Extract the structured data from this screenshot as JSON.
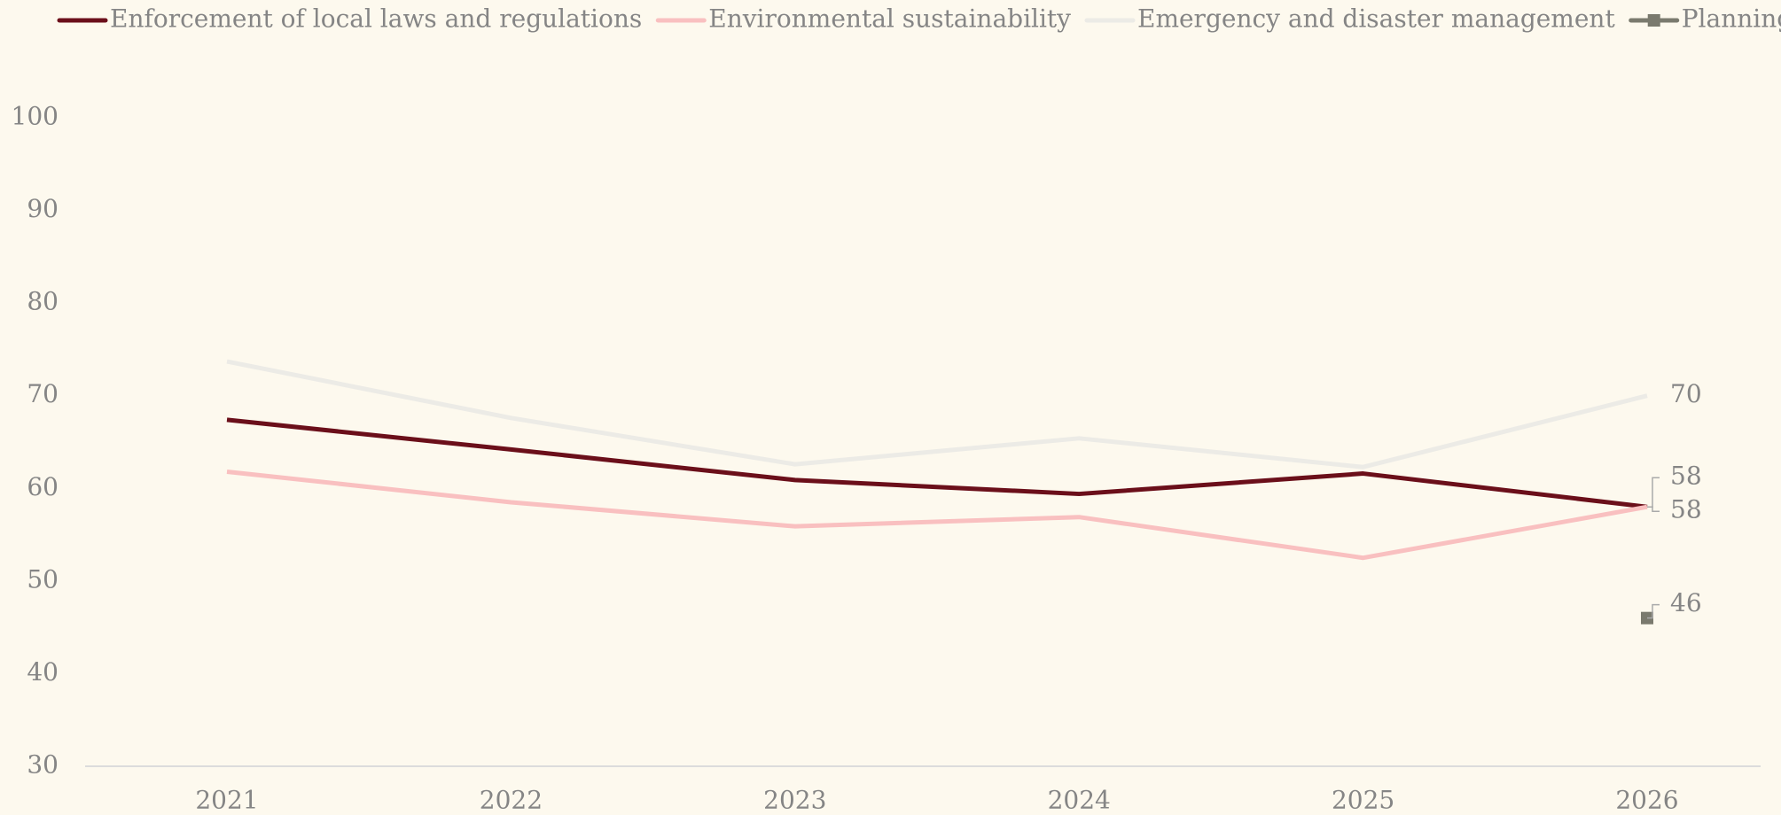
{
  "chart_data": {
    "type": "line",
    "categories": [
      "2021",
      "2022",
      "2023",
      "2024",
      "2025",
      "2026"
    ],
    "series": [
      {
        "name": "Enforcement of local laws and regulations",
        "color": "#6b0f1a",
        "values": [
          67.4,
          64.2,
          60.9,
          59.4,
          61.6,
          58
        ]
      },
      {
        "name": "Environmental sustainability",
        "color": "#f9c0c0",
        "values": [
          61.8,
          58.5,
          55.9,
          56.9,
          52.5,
          58
        ]
      },
      {
        "name": "Emergency and disaster management",
        "color": "#ecebe6",
        "values": [
          73.7,
          67.6,
          62.6,
          65.4,
          62.3,
          70
        ]
      },
      {
        "name": "Planning",
        "color": "#7a7a6e",
        "marker": "square",
        "values": [
          null,
          null,
          null,
          null,
          null,
          46
        ]
      }
    ],
    "ylim": [
      30,
      100
    ],
    "yticks": [
      30,
      40,
      50,
      60,
      70,
      80,
      90,
      100
    ],
    "grid": false,
    "legend": "top"
  }
}
